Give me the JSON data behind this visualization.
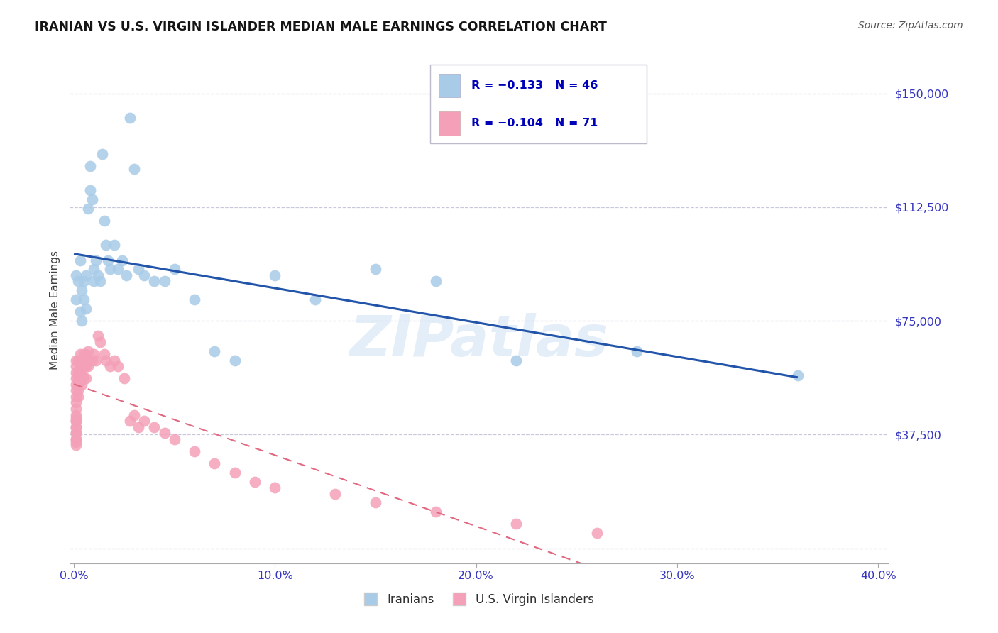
{
  "title": "IRANIAN VS U.S. VIRGIN ISLANDER MEDIAN MALE EARNINGS CORRELATION CHART",
  "source": "Source: ZipAtlas.com",
  "ylabel": "Median Male Earnings",
  "xlim": [
    -0.002,
    0.405
  ],
  "ylim": [
    -5000,
    162000
  ],
  "ytick_vals": [
    0,
    37500,
    75000,
    112500,
    150000
  ],
  "ytick_labels": [
    "",
    "$37,500",
    "$75,000",
    "$112,500",
    "$150,000"
  ],
  "xtick_vals": [
    0.0,
    0.1,
    0.2,
    0.3,
    0.4
  ],
  "xtick_labels": [
    "0.0%",
    "10.0%",
    "20.0%",
    "30.0%",
    "40.0%"
  ],
  "blue_scatter": "#A8CBE8",
  "pink_scatter": "#F4A0B8",
  "trendline_blue": "#2255AA",
  "trendline_pink": "#E06880",
  "grid_color": "#C8C8DC",
  "axis_tick_color": "#3535C0",
  "title_color": "#151515",
  "source_color": "#555555",
  "watermark": "ZIPatlas",
  "watermark_color": "#D5E5F5",
  "legend_label1": "Iranians",
  "legend_label2": "U.S. Virgin Islanders",
  "corr_text1": "R = −0.133   N = 46",
  "corr_text2": "R = −0.104   N = 71",
  "iranians_x": [
    0.001,
    0.001,
    0.002,
    0.003,
    0.003,
    0.004,
    0.004,
    0.005,
    0.005,
    0.006,
    0.006,
    0.007,
    0.008,
    0.008,
    0.009,
    0.01,
    0.01,
    0.011,
    0.012,
    0.013,
    0.014,
    0.015,
    0.016,
    0.017,
    0.018,
    0.02,
    0.022,
    0.024,
    0.026,
    0.028,
    0.03,
    0.032,
    0.035,
    0.04,
    0.045,
    0.05,
    0.06,
    0.07,
    0.08,
    0.1,
    0.12,
    0.15,
    0.18,
    0.22,
    0.28,
    0.36
  ],
  "iranians_y": [
    90000,
    82000,
    88000,
    78000,
    95000,
    85000,
    75000,
    88000,
    82000,
    90000,
    79000,
    112000,
    118000,
    126000,
    115000,
    92000,
    88000,
    95000,
    90000,
    88000,
    130000,
    108000,
    100000,
    95000,
    92000,
    100000,
    92000,
    95000,
    90000,
    142000,
    125000,
    92000,
    90000,
    88000,
    88000,
    92000,
    82000,
    65000,
    62000,
    90000,
    82000,
    92000,
    88000,
    62000,
    65000,
    57000
  ],
  "vi_x": [
    0.001,
    0.001,
    0.001,
    0.001,
    0.001,
    0.001,
    0.001,
    0.001,
    0.001,
    0.001,
    0.001,
    0.001,
    0.001,
    0.001,
    0.001,
    0.001,
    0.001,
    0.001,
    0.001,
    0.001,
    0.001,
    0.002,
    0.002,
    0.002,
    0.002,
    0.002,
    0.002,
    0.003,
    0.003,
    0.003,
    0.003,
    0.004,
    0.004,
    0.004,
    0.005,
    0.005,
    0.005,
    0.006,
    0.006,
    0.006,
    0.007,
    0.007,
    0.008,
    0.009,
    0.01,
    0.011,
    0.012,
    0.013,
    0.015,
    0.016,
    0.018,
    0.02,
    0.022,
    0.025,
    0.028,
    0.03,
    0.032,
    0.035,
    0.04,
    0.045,
    0.05,
    0.06,
    0.07,
    0.08,
    0.09,
    0.1,
    0.13,
    0.15,
    0.18,
    0.22,
    0.26
  ],
  "vi_y": [
    62000,
    60000,
    58000,
    56000,
    54000,
    52000,
    50000,
    48000,
    46000,
    44000,
    43000,
    42000,
    42000,
    40000,
    40000,
    38000,
    38000,
    36000,
    36000,
    35000,
    34000,
    62000,
    58000,
    56000,
    54000,
    52000,
    50000,
    64000,
    60000,
    58000,
    55000,
    62000,
    58000,
    54000,
    64000,
    60000,
    56000,
    64000,
    60000,
    56000,
    65000,
    60000,
    62000,
    62000,
    64000,
    62000,
    70000,
    68000,
    64000,
    62000,
    60000,
    62000,
    60000,
    56000,
    42000,
    44000,
    40000,
    42000,
    40000,
    38000,
    36000,
    32000,
    28000,
    25000,
    22000,
    20000,
    18000,
    15000,
    12000,
    8000,
    5000
  ]
}
